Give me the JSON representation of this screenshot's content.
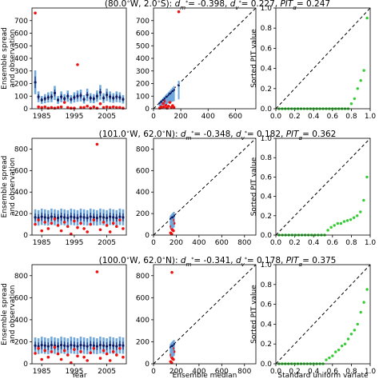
{
  "figure": {
    "row_titles": [
      {
        "pre": "(80.0",
        "post": "W, 2.0",
        "post2": "S): ",
        "dm": "= -0.398, ",
        "dv": "= 0.227, ",
        "pit": "= 0.247"
      },
      {
        "pre": "(101.0",
        "post": "W, 62.0",
        "post2": "N): ",
        "dm": "= -0.348, ",
        "dv": "= 0.182, ",
        "pit": "= 0.362"
      },
      {
        "pre": "(100.0",
        "post": "W, 62.0",
        "post2": "N): ",
        "dm": "= -0.341, ",
        "dv": "= 0.178, ",
        "pit": "= 0.375"
      }
    ],
    "ylabel_col1_line1": "Ensemble spread",
    "ylabel_col1_line2": "and observation",
    "ylabel_col3": "Sorted PIT value",
    "xlabel_col1": "Year",
    "xlabel_col2": "Ensemble median",
    "xlabel_col3": "Standard uniform variate"
  },
  "chart_data": [
    {
      "type": "scatter",
      "panel": "row1-timeseries",
      "x_ticks": [
        1985,
        1995,
        2005
      ],
      "xlim": [
        1982,
        2011
      ],
      "y_ticks": [
        0,
        100,
        200,
        300,
        400,
        500,
        600,
        700
      ],
      "ylim": [
        0,
        800
      ],
      "ensemble_median": [
        210,
        95,
        70,
        80,
        90,
        95,
        125,
        70,
        95,
        80,
        100,
        75,
        90,
        100,
        105,
        75,
        110,
        85,
        80,
        100,
        130,
        85,
        110,
        95,
        85,
        95,
        90,
        75
      ],
      "observations": [
        760,
        15,
        10,
        15,
        5,
        10,
        5,
        10,
        15,
        50,
        10,
        5,
        5,
        350,
        10,
        10,
        20,
        5,
        15,
        5,
        40,
        10,
        15,
        10,
        15,
        10,
        10,
        5
      ]
    },
    {
      "type": "scatter",
      "panel": "row1-median",
      "x_ticks": [
        0,
        200,
        400,
        600
      ],
      "xlim": [
        0,
        750
      ],
      "y_ticks": [
        0,
        100,
        200,
        300,
        400,
        500,
        600,
        700
      ],
      "ylim": [
        0,
        800
      ],
      "points": [
        [
          45,
          5
        ],
        [
          60,
          10
        ],
        [
          75,
          15
        ],
        [
          90,
          30
        ],
        [
          110,
          20
        ],
        [
          130,
          10
        ],
        [
          80,
          60
        ],
        [
          70,
          40
        ],
        [
          150,
          10
        ],
        [
          185,
          770
        ],
        [
          55,
          15
        ],
        [
          100,
          5
        ],
        [
          120,
          50
        ],
        [
          95,
          8
        ],
        [
          140,
          25
        ]
      ]
    },
    {
      "type": "scatter",
      "panel": "row1-pit",
      "x_ticks": [
        0.0,
        0.2,
        0.4,
        0.6,
        0.8,
        1.0
      ],
      "xlim": [
        0,
        1
      ],
      "y_ticks": [
        0.0,
        0.2,
        0.4,
        0.6,
        0.8,
        1.0
      ],
      "ylim": [
        0,
        1
      ],
      "values": [
        0,
        0,
        0,
        0,
        0,
        0,
        0,
        0,
        0,
        0,
        0,
        0,
        0,
        0,
        0,
        0,
        0,
        0,
        0,
        0,
        0,
        0,
        0,
        0.05,
        0.1,
        0.2,
        0.28,
        0.38,
        0.9
      ]
    },
    {
      "type": "scatter",
      "panel": "row2-timeseries",
      "x_ticks": [
        1985,
        1995,
        2005
      ],
      "xlim": [
        1982,
        2011
      ],
      "y_ticks": [
        0,
        200,
        400,
        600,
        800
      ],
      "ylim": [
        0,
        900
      ],
      "ensemble_median": [
        165,
        160,
        170,
        165,
        160,
        170,
        165,
        160,
        170,
        165,
        160,
        170,
        165,
        160,
        170,
        165,
        160,
        170,
        165,
        160,
        170,
        165,
        160,
        170,
        165,
        160,
        170,
        165
      ],
      "observations": [
        100,
        140,
        40,
        120,
        60,
        110,
        150,
        90,
        40,
        120,
        80,
        10,
        130,
        70,
        110,
        60,
        30,
        100,
        140,
        845,
        50,
        120,
        90,
        30,
        110,
        80,
        140,
        60
      ]
    },
    {
      "type": "scatter",
      "panel": "row2-median",
      "x_ticks": [
        0,
        200,
        400,
        600,
        800
      ],
      "xlim": [
        0,
        900
      ],
      "y_ticks": [
        0,
        200,
        400,
        600,
        800
      ],
      "ylim": [
        0,
        900
      ],
      "points": [
        [
          150,
          20
        ],
        [
          160,
          60
        ],
        [
          170,
          100
        ],
        [
          165,
          130
        ],
        [
          175,
          40
        ],
        [
          155,
          80
        ],
        [
          180,
          110
        ],
        [
          160,
          10
        ],
        [
          170,
          140
        ],
        [
          165,
          50
        ]
      ]
    },
    {
      "type": "scatter",
      "panel": "row2-pit",
      "x_ticks": [
        0.0,
        0.2,
        0.4,
        0.6,
        0.8,
        1.0
      ],
      "xlim": [
        0,
        1
      ],
      "y_ticks": [
        0.0,
        0.2,
        0.4,
        0.6,
        0.8,
        1.0
      ],
      "ylim": [
        0,
        1
      ],
      "values": [
        0,
        0,
        0,
        0,
        0,
        0,
        0,
        0,
        0,
        0,
        0,
        0,
        0,
        0,
        0,
        0.05,
        0.08,
        0.1,
        0.12,
        0.12,
        0.14,
        0.15,
        0.16,
        0.18,
        0.2,
        0.24,
        0.36,
        0.6
      ]
    },
    {
      "type": "scatter",
      "panel": "row3-timeseries",
      "x_ticks": [
        1985,
        1995,
        2005
      ],
      "xlim": [
        1982,
        2011
      ],
      "y_ticks": [
        0,
        200,
        400,
        600,
        800
      ],
      "ylim": [
        0,
        900
      ],
      "ensemble_median": [
        165,
        160,
        170,
        165,
        160,
        170,
        165,
        160,
        170,
        165,
        160,
        170,
        165,
        160,
        170,
        165,
        160,
        170,
        165,
        160,
        170,
        165,
        160,
        170,
        165,
        160,
        170,
        165
      ],
      "observations": [
        95,
        140,
        40,
        120,
        60,
        110,
        150,
        90,
        40,
        120,
        80,
        10,
        130,
        70,
        110,
        60,
        30,
        100,
        140,
        835,
        50,
        120,
        90,
        30,
        110,
        80,
        140,
        60
      ]
    },
    {
      "type": "scatter",
      "panel": "row3-median",
      "x_ticks": [
        0,
        200,
        400,
        600,
        800
      ],
      "xlim": [
        0,
        900
      ],
      "y_ticks": [
        0,
        200,
        400,
        600,
        800
      ],
      "ylim": [
        0,
        900
      ],
      "points": [
        [
          150,
          20
        ],
        [
          160,
          60
        ],
        [
          170,
          100
        ],
        [
          165,
          130
        ],
        [
          175,
          40
        ],
        [
          155,
          80
        ],
        [
          180,
          110
        ],
        [
          160,
          10
        ],
        [
          170,
          140
        ],
        [
          165,
          50
        ],
        [
          162,
          830
        ]
      ]
    },
    {
      "type": "scatter",
      "panel": "row3-pit",
      "x_ticks": [
        0.0,
        0.2,
        0.4,
        0.6,
        0.8,
        1.0
      ],
      "xlim": [
        0,
        1
      ],
      "y_ticks": [
        0.0,
        0.2,
        0.4,
        0.6,
        0.8,
        1.0
      ],
      "ylim": [
        0,
        1
      ],
      "values": [
        0,
        0,
        0,
        0,
        0,
        0,
        0,
        0,
        0,
        0,
        0,
        0,
        0,
        0,
        0,
        0.04,
        0.06,
        0.08,
        0.12,
        0.14,
        0.18,
        0.2,
        0.25,
        0.3,
        0.34,
        0.4,
        0.52,
        0.62,
        0.75
      ]
    }
  ]
}
